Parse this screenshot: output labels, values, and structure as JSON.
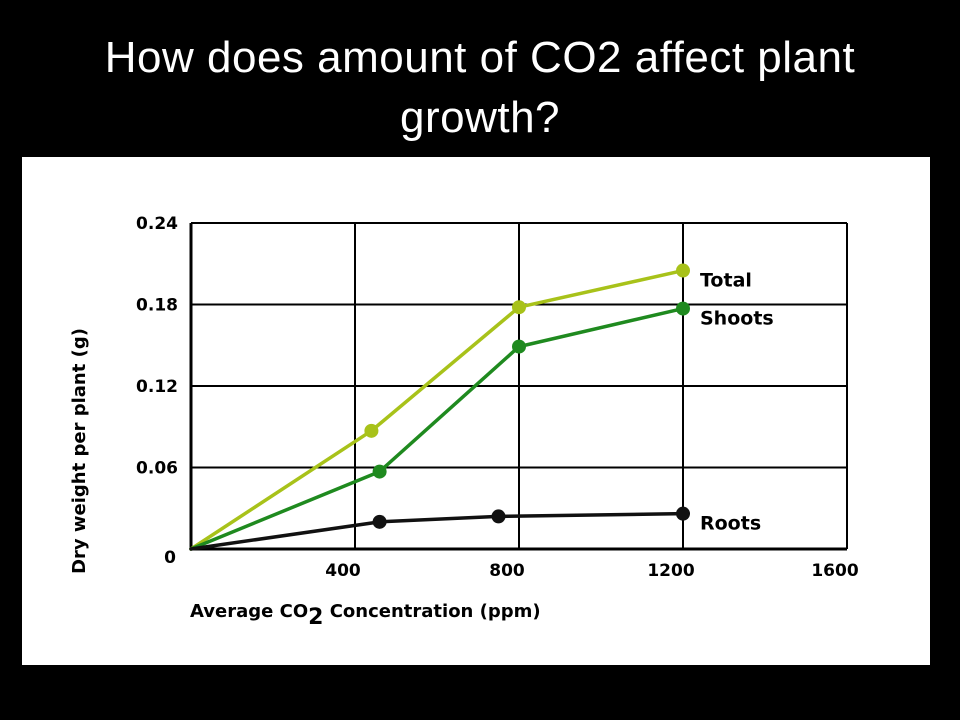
{
  "slide": {
    "title_line1": "How does amount of CO2 affect plant",
    "title_line2": "growth?"
  },
  "chart_data": {
    "type": "line",
    "xlabel": "Average CO2 Concentration (ppm)",
    "xlabel_parts": {
      "pre": "Average CO",
      "sub": "2",
      "post": " Concentration (ppm)"
    },
    "ylabel": "Dry weight per plant (g)",
    "xlim": [
      0,
      1600
    ],
    "ylim": [
      0,
      0.24
    ],
    "x_ticks": [
      {
        "value": 0,
        "label": "0"
      },
      {
        "value": 400,
        "label": "400"
      },
      {
        "value": 800,
        "label": "800"
      },
      {
        "value": 1200,
        "label": "1200"
      },
      {
        "value": 1600,
        "label": "1600"
      }
    ],
    "y_ticks": [
      {
        "value": 0.06,
        "label": "0.06"
      },
      {
        "value": 0.12,
        "label": "0.12"
      },
      {
        "value": 0.18,
        "label": "0.18"
      },
      {
        "value": 0.24,
        "label": "0.24"
      }
    ],
    "grid": true,
    "series": [
      {
        "name": "Total",
        "color": "#a8c21a",
        "points": [
          [
            0,
            0
          ],
          [
            440,
            0.087
          ],
          [
            800,
            0.178
          ],
          [
            1200,
            0.205
          ]
        ]
      },
      {
        "name": "Shoots",
        "color": "#1f8a1f",
        "points": [
          [
            0,
            0
          ],
          [
            460,
            0.057
          ],
          [
            800,
            0.149
          ],
          [
            1200,
            0.177
          ]
        ]
      },
      {
        "name": "Roots",
        "color": "#111111",
        "points": [
          [
            0,
            0
          ],
          [
            460,
            0.02
          ],
          [
            750,
            0.024
          ],
          [
            1200,
            0.026
          ]
        ]
      }
    ]
  }
}
